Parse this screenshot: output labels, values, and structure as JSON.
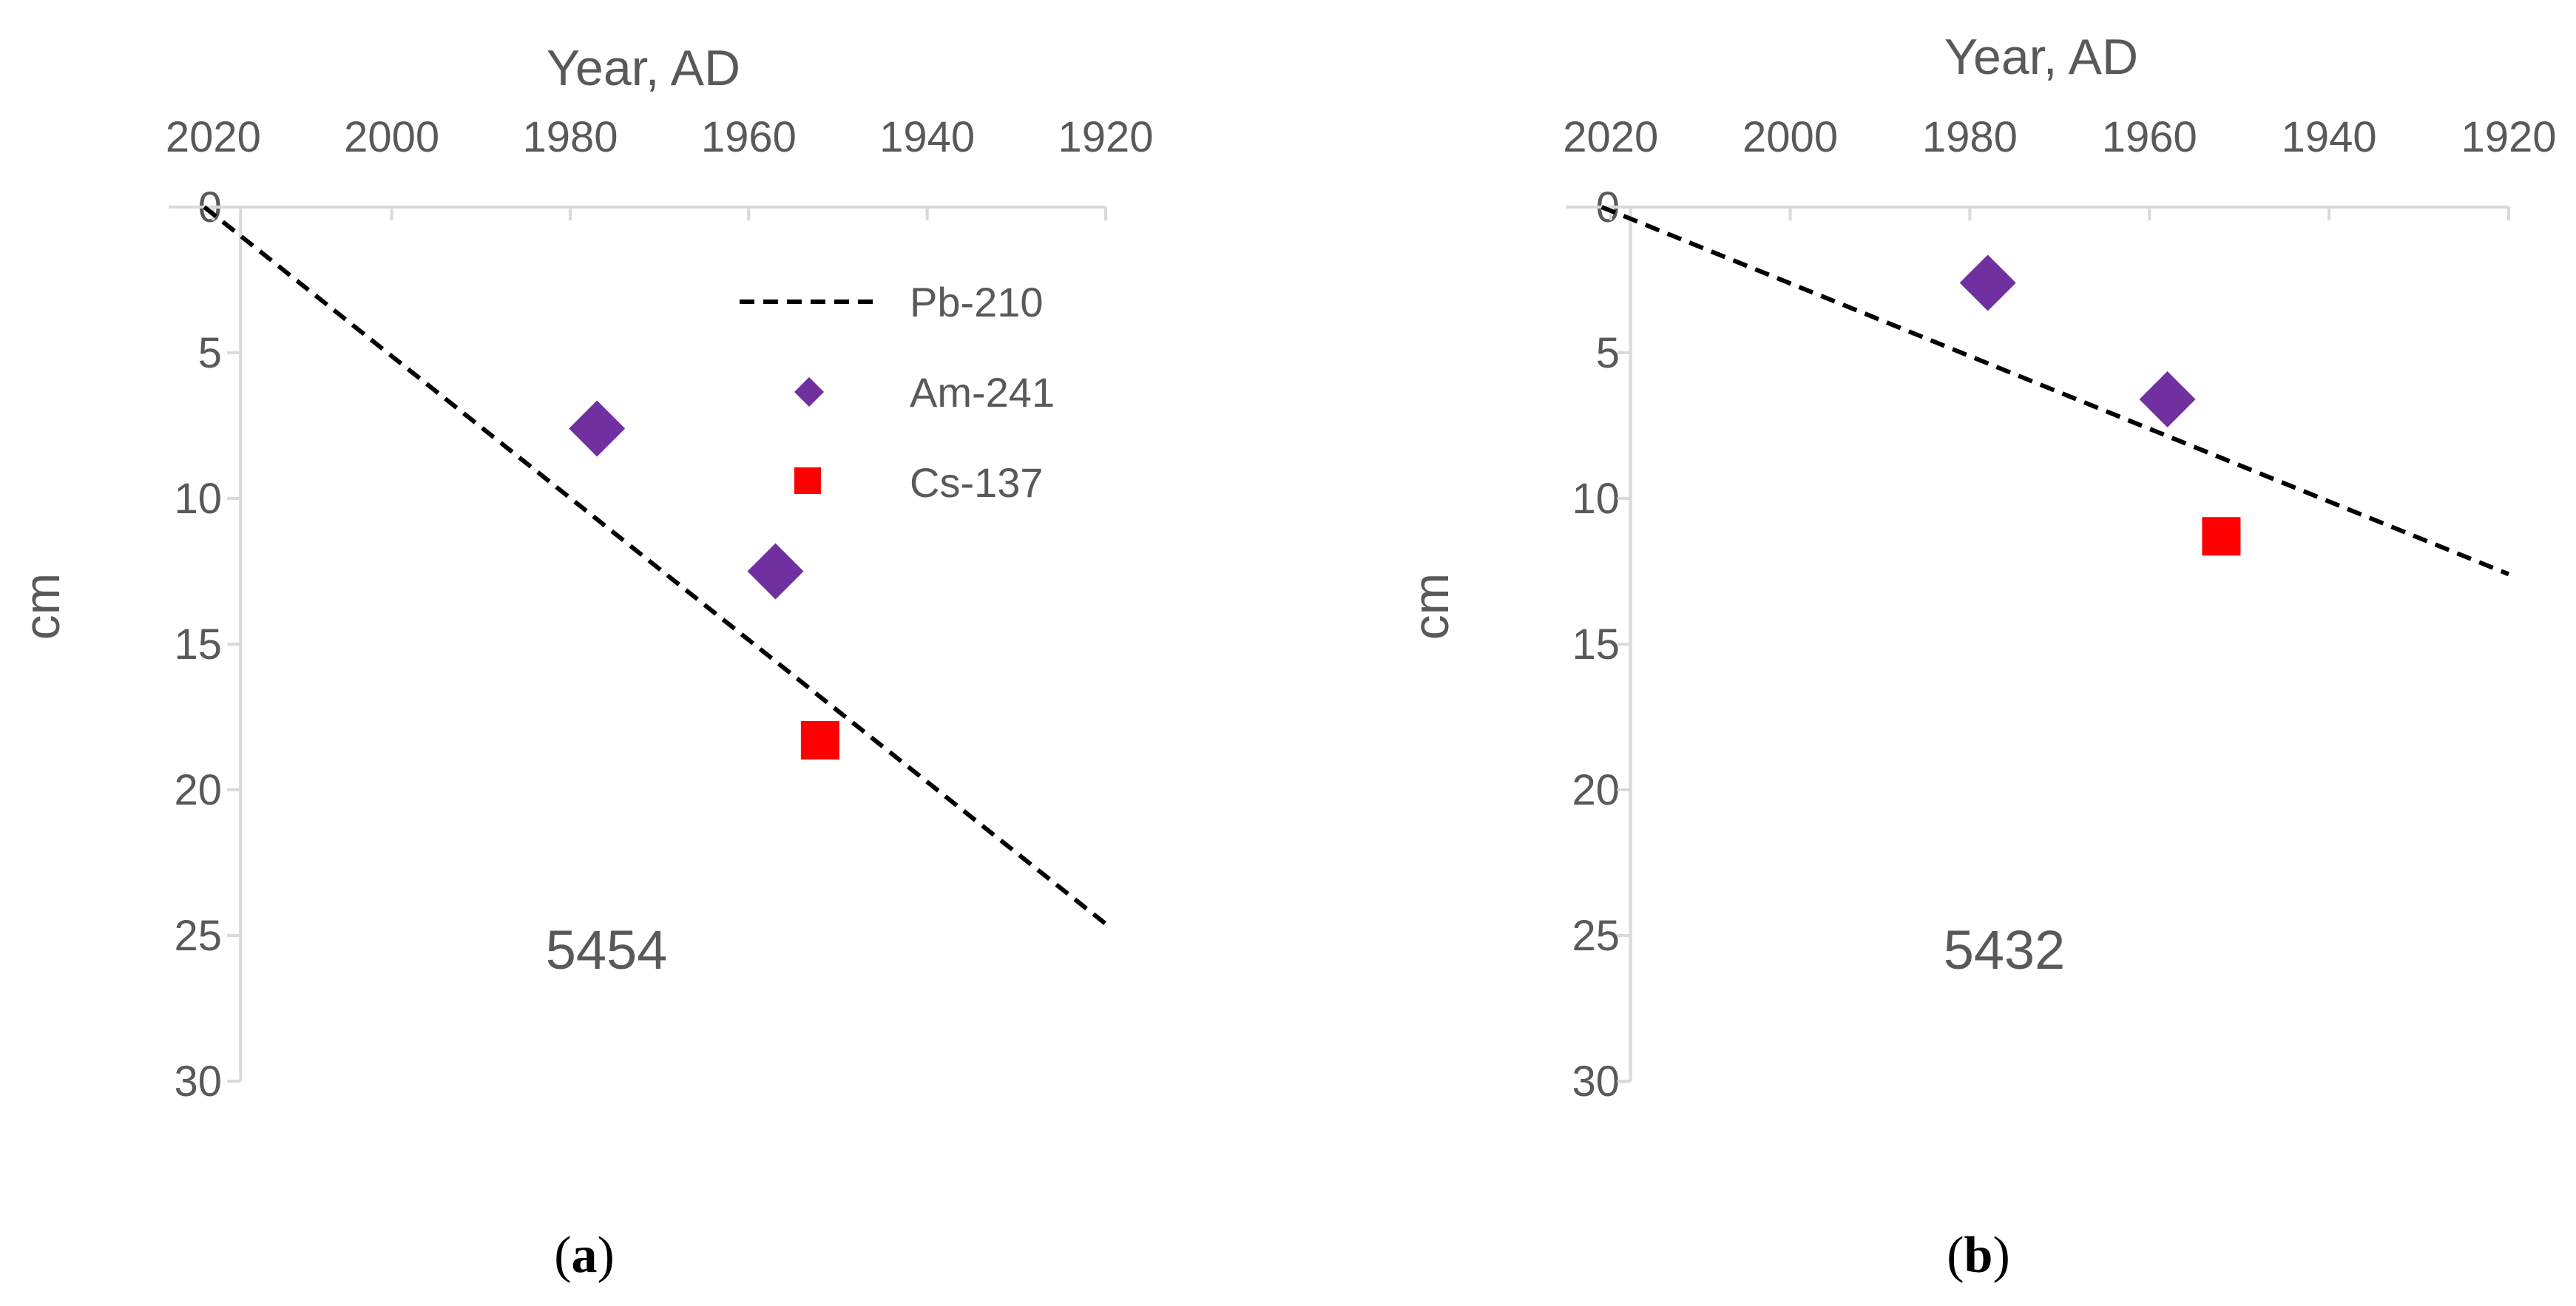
{
  "chart_data": [
    {
      "type": "scatter",
      "id": "a",
      "caption": "a",
      "xlabel": "Year, AD",
      "ylabel": "cm",
      "xlim": [
        2025,
        1920
      ],
      "ylim": [
        0,
        30
      ],
      "xticks": [
        "2020",
        "2000",
        "1980",
        "1960",
        "1940",
        "1920"
      ],
      "yticks": [
        "0",
        "5",
        "10",
        "15",
        "20",
        "25",
        "30"
      ],
      "core_label": "5454",
      "fit_line": {
        "name": "Pb-210",
        "x": [
          2021,
          1920
        ],
        "y": [
          0,
          24.6
        ]
      },
      "series": [
        {
          "name": "Am-241",
          "x": [
            1977
          ],
          "y": [
            7.6
          ]
        },
        {
          "name": "Am-241",
          "x": [
            1957
          ],
          "y": [
            12.5
          ]
        },
        {
          "name": "Cs-137",
          "x": [
            1952
          ],
          "y": [
            18.3
          ]
        }
      ],
      "legend": {
        "position": "top-right",
        "entries": [
          "Pb-210",
          "Am-241",
          "Cs-137"
        ]
      }
    },
    {
      "type": "scatter",
      "id": "b",
      "caption": "b",
      "xlabel": "Year, AD",
      "ylabel": "cm",
      "xlim": [
        2025,
        1920
      ],
      "ylim": [
        0,
        30
      ],
      "xticks": [
        "2020",
        "2000",
        "1980",
        "1960",
        "1940",
        "1920"
      ],
      "yticks": [
        "0",
        "5",
        "10",
        "15",
        "20",
        "25",
        "30"
      ],
      "core_label": "5432",
      "fit_line": {
        "name": "Pb-210",
        "x": [
          2021,
          1920
        ],
        "y": [
          0,
          12.6
        ]
      },
      "series": [
        {
          "name": "Am-241",
          "x": [
            1978
          ],
          "y": [
            2.6
          ]
        },
        {
          "name": "Am-241",
          "x": [
            1958
          ],
          "y": [
            6.6
          ]
        },
        {
          "name": "Cs-137",
          "x": [
            1952
          ],
          "y": [
            11.3
          ]
        }
      ],
      "legend": null
    }
  ],
  "colors": {
    "am241": "#7030a0",
    "cs137": "#ff0000",
    "axis": "#d9d9d9",
    "text": "#595959"
  }
}
